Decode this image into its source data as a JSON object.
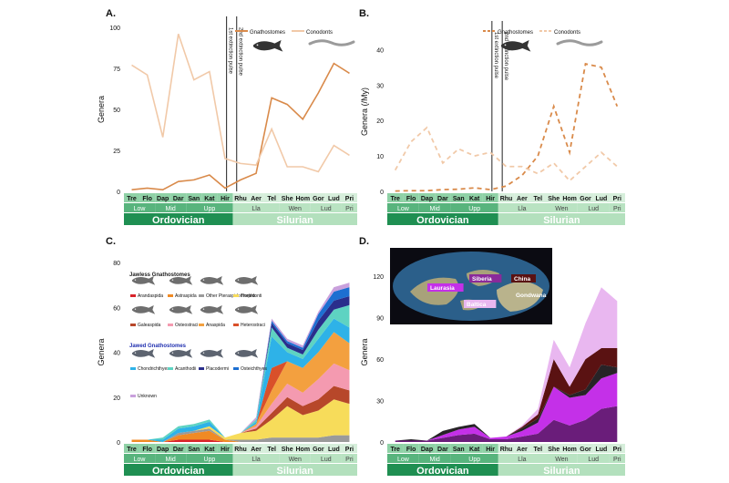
{
  "colors": {
    "gnathostomes": "#d98a4a",
    "conodonts": "#f1c9a8",
    "ordovician_dark": "#1f8f52",
    "ordovician_mid": "#58b47d",
    "ordovician_light": "#8fd1a6",
    "silurian": "#b9e3c2",
    "silurian_light": "#d6eedb",
    "pulse_line": "#222222"
  },
  "stage_axis": {
    "stages": [
      "Tre",
      "Flo",
      "Dap",
      "Dar",
      "San",
      "Kat",
      "Hir",
      "Rhu",
      "Aer",
      "Tel",
      "She",
      "Hom",
      "Gor",
      "Lud",
      "Pri"
    ],
    "epochs": [
      {
        "label": "Low",
        "start": 0,
        "end": 2
      },
      {
        "label": "Mid",
        "start": 2,
        "end": 4
      },
      {
        "label": "Upp",
        "start": 4,
        "end": 7
      },
      {
        "label": "Lla",
        "start": 7,
        "end": 10
      },
      {
        "label": "Wen",
        "start": 10,
        "end": 12
      },
      {
        "label": "Lud",
        "start": 12,
        "end": 14
      },
      {
        "label": "Pri",
        "start": 14,
        "end": 15
      }
    ],
    "periods": [
      {
        "label": "Ordovician",
        "start": 0,
        "end": 7
      },
      {
        "label": "Silurian",
        "start": 7,
        "end": 15
      }
    ]
  },
  "pulses": {
    "first": "1st extinction pulse",
    "second": "2nd extinction pulse"
  },
  "chart_data": [
    {
      "panel": "A.",
      "type": "line",
      "ylabel": "Genera",
      "ylim": [
        0,
        100
      ],
      "yticks": [
        0,
        25,
        50,
        75,
        100
      ],
      "x": [
        "Tre",
        "Flo",
        "Dap",
        "Dar",
        "San",
        "Kat",
        "Hir",
        "Rhu",
        "Aer",
        "Tel",
        "She",
        "Hom",
        "Gor",
        "Lud",
        "Pri"
      ],
      "series": [
        {
          "name": "Gnathostomes",
          "values": [
            1,
            2,
            1,
            6,
            7,
            10,
            2,
            7,
            11,
            57,
            53,
            44,
            60,
            78,
            72
          ]
        },
        {
          "name": "Conodonts",
          "values": [
            77,
            71,
            33,
            96,
            68,
            73,
            20,
            17,
            16,
            38,
            15,
            15,
            12,
            28,
            22
          ]
        }
      ]
    },
    {
      "panel": "B.",
      "type": "line",
      "ylabel": "Genera (/My)",
      "ylim": [
        0,
        45
      ],
      "yticks": [
        0,
        10,
        20,
        30,
        40
      ],
      "x": [
        "Tre",
        "Flo",
        "Dap",
        "Dar",
        "San",
        "Kat",
        "Hir",
        "Rhu",
        "Aer",
        "Tel",
        "She",
        "Hom",
        "Gor",
        "Lud",
        "Pri"
      ],
      "series": [
        {
          "name": "Gnathostomes",
          "values": [
            0.1,
            0.2,
            0.2,
            0.5,
            0.6,
            1,
            0.5,
            1.5,
            4.5,
            10,
            24,
            11,
            36,
            35,
            24
          ]
        },
        {
          "name": "Conodonts",
          "values": [
            6,
            14,
            18,
            8,
            12,
            10,
            11,
            7,
            7,
            5,
            8,
            3,
            7,
            11,
            7
          ]
        }
      ]
    },
    {
      "panel": "C.",
      "type": "area",
      "ylabel": "Genera",
      "ylim": [
        0,
        80
      ],
      "yticks": [
        0,
        20,
        40,
        60,
        80
      ],
      "x": [
        "Tre",
        "Flo",
        "Dap",
        "Dar",
        "San",
        "Kat",
        "Hir",
        "Rhu",
        "Aer",
        "Tel",
        "She",
        "Hom",
        "Gor",
        "Lud",
        "Pri"
      ],
      "legend_groups": [
        "Jawless Gnathostomes",
        "Jawed Gnathostomes"
      ],
      "series": [
        {
          "name": "Arandaspida",
          "group": "Jawless Gnathostomes",
          "color": "#d8232a",
          "values": [
            0,
            0,
            0,
            1,
            1,
            1,
            0,
            0,
            0,
            0,
            0,
            0,
            0,
            0,
            0
          ]
        },
        {
          "name": "Astraspida",
          "group": "Jawless Gnathostomes",
          "color": "#f08a24",
          "values": [
            1,
            1,
            0,
            2,
            3,
            4,
            1,
            0,
            0,
            0,
            0,
            0,
            0,
            0,
            0
          ]
        },
        {
          "name": "Other Pteraspidomorphs",
          "group": "Jawless Gnathostomes",
          "color": "#9a9a9a",
          "values": [
            0,
            0,
            0,
            1,
            1,
            1,
            0,
            1,
            1,
            2,
            2,
            2,
            2,
            3,
            3
          ]
        },
        {
          "name": "Thelodonti",
          "group": "Jawless Gnathostomes",
          "color": "#f7dc5a",
          "values": [
            0,
            0,
            0,
            0,
            0,
            1,
            1,
            3,
            4,
            8,
            14,
            10,
            12,
            16,
            14
          ]
        },
        {
          "name": "Galeaspida",
          "group": "Jawless Gnathostomes",
          "color": "#b7472a",
          "values": [
            0,
            0,
            0,
            0,
            0,
            0,
            0,
            0,
            1,
            3,
            4,
            4,
            5,
            6,
            6
          ]
        },
        {
          "name": "Osteostraci",
          "group": "Jawless Gnathostomes",
          "color": "#f49ab0",
          "values": [
            0,
            0,
            0,
            0,
            0,
            0,
            0,
            0,
            1,
            4,
            6,
            6,
            9,
            10,
            9
          ]
        },
        {
          "name": "Anaspida",
          "group": "Jawless Gnathostomes",
          "color": "#f3a03f",
          "values": [
            0,
            0,
            0,
            0,
            0,
            0,
            0,
            0,
            1,
            6,
            10,
            11,
            12,
            14,
            12
          ]
        },
        {
          "name": "Heterostraci",
          "group": "Jawless Gnathostomes",
          "color": "#d9502a",
          "values": [
            0,
            0,
            0,
            0,
            0,
            0,
            0,
            0,
            0,
            10,
            0,
            0,
            0,
            0,
            0
          ]
        },
        {
          "name": "Chondrichthyes",
          "group": "Jawed Gnathostomes",
          "color": "#2eb2e8",
          "values": [
            0,
            0,
            1,
            2,
            2,
            2,
            0,
            0,
            1,
            14,
            4,
            4,
            6,
            6,
            7
          ]
        },
        {
          "name": "Acanthodii",
          "group": "Jawed Gnathostomes",
          "color": "#5ed3c2",
          "values": [
            0,
            0,
            1,
            1,
            1,
            1,
            0,
            0,
            1,
            4,
            2,
            2,
            4,
            4,
            10
          ]
        },
        {
          "name": "Placodermi",
          "group": "Jawed Gnathostomes",
          "color": "#2a2e8c",
          "values": [
            0,
            0,
            0,
            0,
            0,
            0,
            0,
            0,
            0,
            2,
            2,
            2,
            4,
            4,
            4
          ]
        },
        {
          "name": "Osteichthyes",
          "group": "Jawed Gnathostomes",
          "color": "#1d6fd1",
          "values": [
            0,
            0,
            0,
            0,
            0,
            0,
            0,
            0,
            0,
            1,
            1,
            1,
            3,
            4,
            4
          ]
        },
        {
          "name": "Unknown",
          "group": "",
          "color": "#c9a0dc",
          "values": [
            0,
            0,
            0,
            0,
            0,
            0,
            0,
            0,
            1,
            1,
            1,
            1,
            1,
            2,
            2
          ]
        }
      ]
    },
    {
      "panel": "D.",
      "type": "area",
      "ylabel": "Genera",
      "ylim": [
        0,
        130
      ],
      "yticks": [
        0,
        30,
        60,
        90,
        120
      ],
      "x": [
        "Tre",
        "Flo",
        "Dap",
        "Dar",
        "San",
        "Kat",
        "Hir",
        "Rhu",
        "Aer",
        "Tel",
        "She",
        "Hom",
        "Gor",
        "Lud",
        "Pri"
      ],
      "map_labels": [
        "Laurasia",
        "Siberia",
        "China",
        "Gondwana",
        "Baltica"
      ],
      "series": [
        {
          "name": "Laurasia",
          "color": "#6a1d7a",
          "values": [
            1,
            1,
            1,
            3,
            5,
            6,
            2,
            2,
            4,
            6,
            16,
            12,
            16,
            24,
            26
          ]
        },
        {
          "name": "Baltica",
          "color": "#c430e8",
          "values": [
            0,
            0,
            0,
            2,
            4,
            5,
            1,
            2,
            4,
            8,
            24,
            20,
            18,
            22,
            24
          ]
        },
        {
          "name": "Siberia",
          "color": "#272327",
          "values": [
            0,
            1,
            0,
            3,
            2,
            2,
            0,
            0,
            2,
            3,
            0,
            2,
            4,
            10,
            4
          ]
        },
        {
          "name": "China",
          "color": "#5a1212",
          "values": [
            0,
            0,
            0,
            0,
            0,
            0,
            0,
            0,
            1,
            3,
            20,
            6,
            22,
            12,
            14
          ]
        },
        {
          "name": "Gondwana",
          "color": "#e9b7f0",
          "values": [
            0,
            0,
            0,
            0,
            0,
            0,
            0,
            0,
            1,
            4,
            14,
            14,
            26,
            44,
            34
          ]
        }
      ]
    }
  ],
  "legendA": {
    "gn": "Gnathostomes",
    "co": "Conodonts"
  },
  "legendB": {
    "gn": "Gnathostomes",
    "co": "Conodonts"
  },
  "legendC": {
    "jawless_title": "Jawless Gnathostomes",
    "jawed_title": "Jawed Gnathostomes",
    "items": [
      {
        "label": "Arandaspida",
        "color": "#d8232a"
      },
      {
        "label": "Astraspida",
        "color": "#f08a24"
      },
      {
        "label": "Other Pteraspidomorphs",
        "color": "#9a9a9a"
      },
      {
        "label": "Thelodonti",
        "color": "#f7dc5a"
      },
      {
        "label": "Galeaspida",
        "color": "#b7472a"
      },
      {
        "label": "Osteostraci",
        "color": "#f49ab0"
      },
      {
        "label": "Anaspida",
        "color": "#f3a03f"
      },
      {
        "label": "Heterostraci",
        "color": "#d9502a"
      },
      {
        "label": "Chondrichthyes",
        "color": "#2eb2e8"
      },
      {
        "label": "Acanthodii",
        "color": "#5ed3c2"
      },
      {
        "label": "Placodermi",
        "color": "#2a2e8c"
      },
      {
        "label": "Osteichthyes",
        "color": "#1d6fd1"
      },
      {
        "label": "Unknown",
        "color": "#c9a0dc"
      }
    ]
  }
}
